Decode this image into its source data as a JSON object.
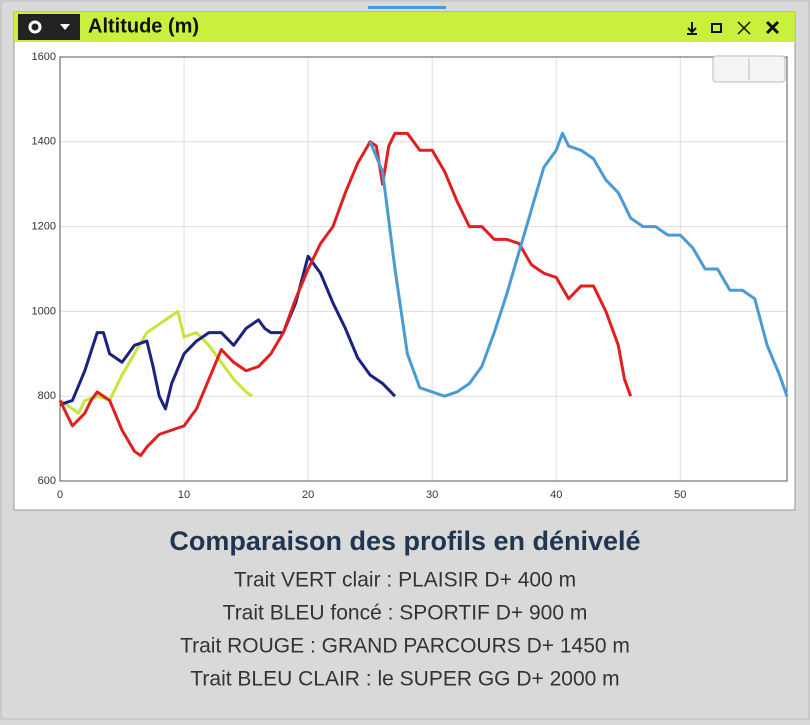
{
  "chart_data": {
    "type": "line",
    "title": "Altitude (m)",
    "subtitle": "Comparaison des profils en dénivelé",
    "zoom_buttons": [
      "-",
      "+"
    ],
    "xlim": [
      0,
      58.6
    ],
    "ylim": [
      600,
      1600
    ],
    "xticks": [
      0,
      10,
      20,
      30,
      40,
      50
    ],
    "yticks": [
      600,
      800,
      1000,
      1200,
      1400,
      1600
    ],
    "grid": true,
    "series": [
      {
        "name": "Trait VERT clair : PLAISIR D+ 400 m",
        "color": "#c5e63a",
        "x": [
          0,
          1,
          1.5,
          2,
          3,
          4,
          5,
          6,
          7,
          8,
          9,
          9.5,
          10,
          11,
          12,
          13,
          14,
          15,
          15.5
        ],
        "values": [
          790,
          770,
          760,
          790,
          800,
          790,
          850,
          900,
          950,
          970,
          990,
          1000,
          940,
          950,
          920,
          880,
          840,
          810,
          800
        ]
      },
      {
        "name": "Trait BLEU foncé : SPORTIF D+ 900 m",
        "color": "#1a237e",
        "x": [
          0,
          1,
          2,
          3,
          3.5,
          4,
          5,
          6,
          7,
          7.5,
          8,
          8.5,
          9,
          10,
          11,
          12,
          13,
          14,
          15,
          16,
          16.5,
          17,
          18,
          19,
          20,
          21,
          22,
          23,
          24,
          25,
          26,
          27
        ],
        "values": [
          780,
          790,
          860,
          950,
          950,
          900,
          880,
          920,
          930,
          870,
          800,
          770,
          830,
          900,
          930,
          950,
          950,
          920,
          960,
          980,
          960,
          950,
          950,
          1020,
          1130,
          1090,
          1020,
          960,
          890,
          850,
          830,
          800
        ]
      },
      {
        "name": "Trait ROUGE : GRAND PARCOURS D+ 1450 m",
        "color": "#e02020",
        "x": [
          0,
          1,
          2,
          2.5,
          3,
          4,
          5,
          6,
          6.5,
          7,
          8,
          9,
          10,
          11,
          12,
          13,
          14,
          15,
          16,
          17,
          18,
          19,
          20,
          21,
          22,
          23,
          24,
          25,
          25.5,
          26,
          26.5,
          27,
          28,
          29,
          30,
          31,
          32,
          33,
          34,
          35,
          36,
          37,
          38,
          39,
          40,
          41,
          42,
          43,
          44,
          45,
          45.5,
          46
        ],
        "values": [
          790,
          730,
          760,
          790,
          810,
          790,
          720,
          670,
          660,
          680,
          710,
          720,
          730,
          770,
          840,
          910,
          880,
          860,
          870,
          900,
          950,
          1030,
          1100,
          1160,
          1200,
          1280,
          1350,
          1400,
          1390,
          1300,
          1390,
          1420,
          1420,
          1380,
          1380,
          1330,
          1260,
          1200,
          1200,
          1170,
          1170,
          1160,
          1110,
          1090,
          1080,
          1030,
          1060,
          1060,
          1000,
          920,
          840,
          800
        ]
      },
      {
        "name": "Trait BLEU CLAIR : le SUPER GG D+ 2000 m",
        "color": "#4a9bd4",
        "x": [
          25,
          26,
          27,
          28,
          29,
          30,
          31,
          32,
          33,
          34,
          35,
          36,
          37,
          38,
          39,
          40,
          40.5,
          41,
          42,
          43,
          44,
          45,
          46,
          47,
          48,
          49,
          50,
          51,
          52,
          53,
          54,
          55,
          56,
          57,
          58,
          58.6
        ],
        "values": [
          1400,
          1330,
          1100,
          900,
          820,
          810,
          800,
          810,
          830,
          870,
          950,
          1040,
          1140,
          1240,
          1340,
          1380,
          1420,
          1390,
          1380,
          1360,
          1310,
          1280,
          1220,
          1200,
          1200,
          1180,
          1180,
          1150,
          1100,
          1100,
          1050,
          1050,
          1030,
          920,
          850,
          800
        ]
      }
    ]
  }
}
